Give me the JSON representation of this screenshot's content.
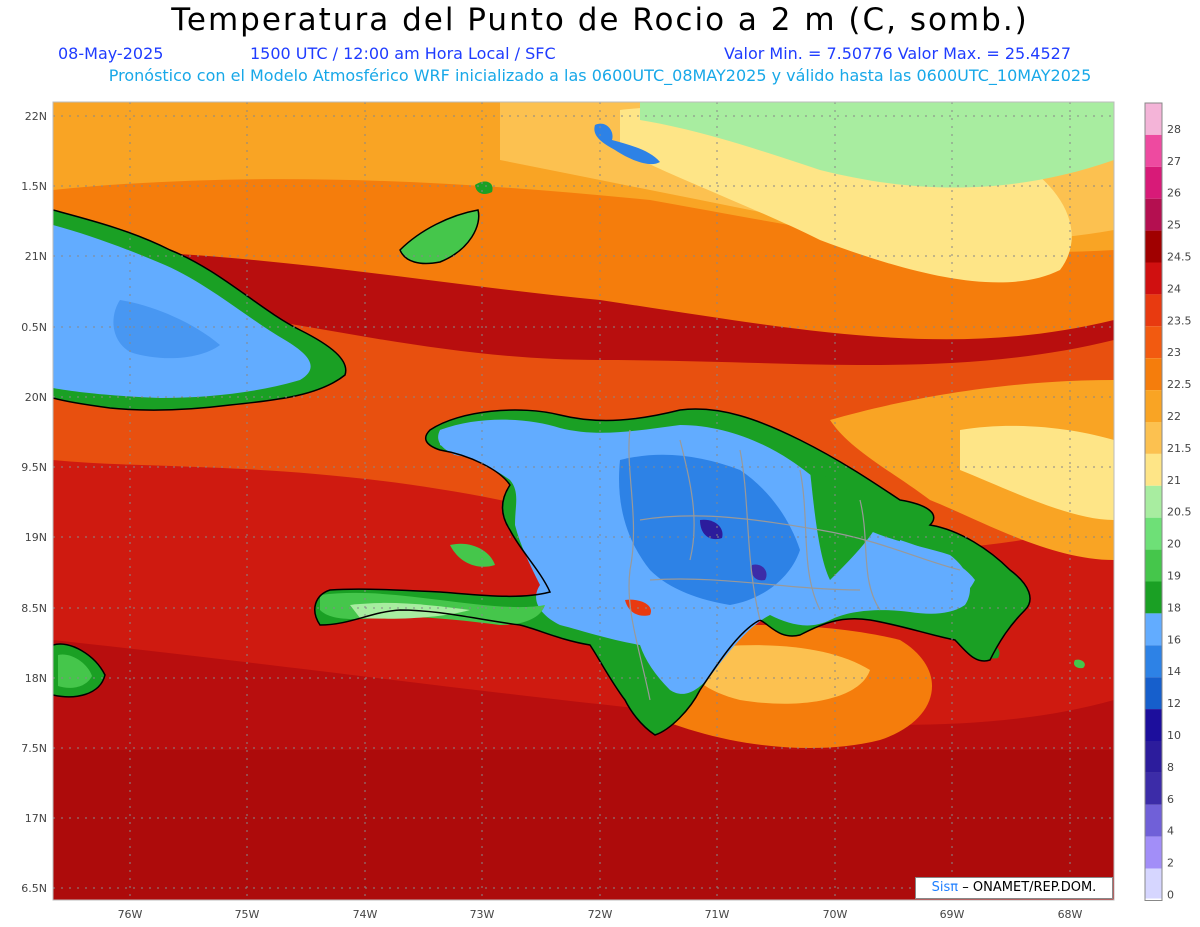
{
  "title": "Temperatura del Punto de Rocio a 2 m (C, somb.)",
  "subtitle": {
    "date": "08-May-2025",
    "time": "1500 UTC / 12:00 am Hora Local / SFC",
    "minmax": "Valor Min. = 7.50776  Valor Max. = 25.4527"
  },
  "description": "Pronóstico con el Modelo Atmosférico WRF inicializado a las 0600UTC_08MAY2025 y válido hasta las  0600UTC_10MAY2025",
  "axes": {
    "lat_labels": [
      "22N",
      "1.5N",
      "21N",
      "0.5N",
      "20N",
      "9.5N",
      "19N",
      "8.5N",
      "18N",
      "7.5N",
      "17N",
      "6.5N"
    ],
    "lon_labels": [
      "76W",
      "75W",
      "74W",
      "73W",
      "72W",
      "71W",
      "70W",
      "69W",
      "68W"
    ]
  },
  "legend": {
    "labels": [
      "28",
      "27",
      "26",
      "25",
      "24.5",
      "24",
      "23.5",
      "23",
      "22.5",
      "22",
      "21.5",
      "21",
      "20.5",
      "20",
      "19",
      "18",
      "16",
      "14",
      "12",
      "10",
      "8",
      "6",
      "4",
      "2",
      "0"
    ],
    "colors": [
      "#f4b4d8",
      "#ee4aa0",
      "#d81a78",
      "#b40f50",
      "#a00000",
      "#d01010",
      "#e83a10",
      "#f25a10",
      "#f57d0c",
      "#f9a424",
      "#fcc150",
      "#fee587",
      "#a8eda0",
      "#6ee077",
      "#45c64b",
      "#1aa024",
      "#62acff",
      "#2d82e6",
      "#165fcc",
      "#1c0e9c",
      "#2c1c9c",
      "#3c2ca8",
      "#7060d8",
      "#a28ef8",
      "#d6d6ff"
    ],
    "zero_color": "#ffffff"
  },
  "credit": {
    "brand": "Sisπ",
    "text": "– ONAMET/REP.DOM."
  },
  "colors": {
    "title": "#000000",
    "subtitle": "#1f3cff",
    "description": "#18a8e8"
  }
}
